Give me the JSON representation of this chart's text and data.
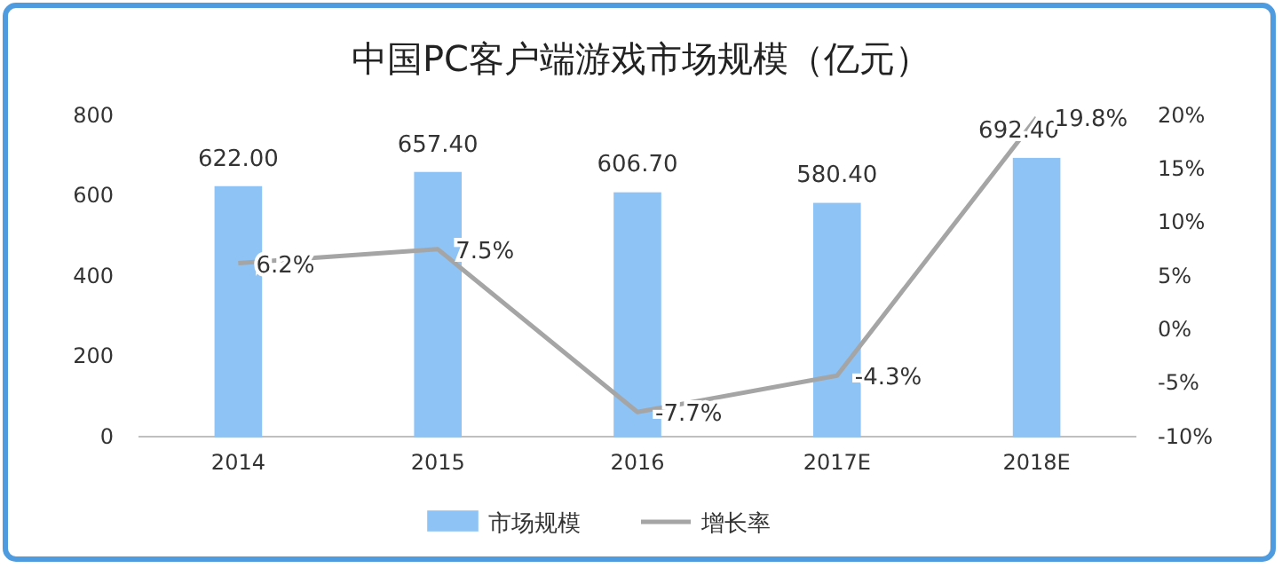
{
  "chart_data": {
    "type": "bar",
    "title": "中国PC客户端游戏市场规模（亿元）",
    "categories": [
      "2014",
      "2015",
      "2016",
      "2017E",
      "2018E"
    ],
    "series": [
      {
        "name": "市场规模",
        "color": "#8ec3f5",
        "values": [
          622.0,
          657.4,
          606.7,
          580.4,
          692.4
        ],
        "value_labels": [
          "622.00",
          "657.40",
          "606.70",
          "580.40",
          "692.40"
        ]
      },
      {
        "name": "增长率",
        "type": "line",
        "axis": "y2",
        "color": "#a5a5a5",
        "values": [
          6.2,
          7.5,
          -7.7,
          -4.3,
          19.8
        ],
        "value_labels": [
          "6.2%",
          "7.5%",
          "-7.7%",
          "-4.3%",
          "19.8%"
        ]
      }
    ],
    "ylim": [
      0,
      800
    ],
    "yticks": [
      0,
      200,
      400,
      600,
      800
    ],
    "y2lim": [
      -10,
      20
    ],
    "y2ticks": [
      {
        "value": -10,
        "label": "-10%"
      },
      {
        "value": -5,
        "label": "-5%"
      },
      {
        "value": 0,
        "label": "0%"
      },
      {
        "value": 5,
        "label": "5%"
      },
      {
        "value": 10,
        "label": "10%"
      },
      {
        "value": 15,
        "label": "15%"
      },
      {
        "value": 20,
        "label": "20%"
      }
    ],
    "legend": "bottom",
    "marker": "none",
    "line_style": "solid"
  }
}
